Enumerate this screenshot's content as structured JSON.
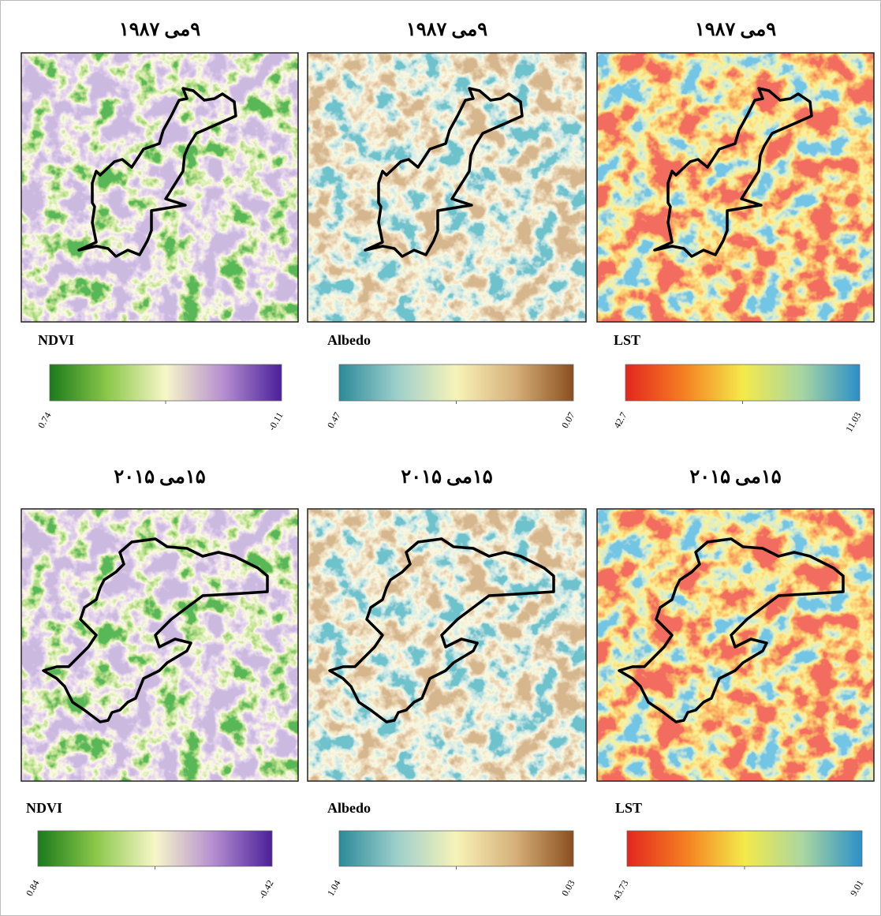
{
  "panels": [
    {
      "title": "۹می ۱۹۸۷",
      "legend": {
        "label": "NDVI",
        "start": "0.74",
        "end": "-0.11"
      }
    },
    {
      "title": "۹می ۱۹۸۷",
      "legend": {
        "label": "Albedo",
        "start": "0.47",
        "end": "0.07"
      }
    },
    {
      "title": "۹می ۱۹۸۷",
      "legend": {
        "label": "LST",
        "start": "42.7",
        "end": "11.03"
      }
    },
    {
      "title": "۱۵می ۲۰۱۵",
      "legend": {
        "label": "NDVI",
        "start": "0.84",
        "end": "-0.42"
      }
    },
    {
      "title": "۱۵می ۲۰۱۵",
      "legend": {
        "label": "Albedo",
        "start": "1.04",
        "end": "0.03"
      }
    },
    {
      "title": "۱۵می ۲۰۱۵",
      "legend": {
        "label": "LST",
        "start": "43.73",
        "end": "9.01"
      }
    }
  ]
}
